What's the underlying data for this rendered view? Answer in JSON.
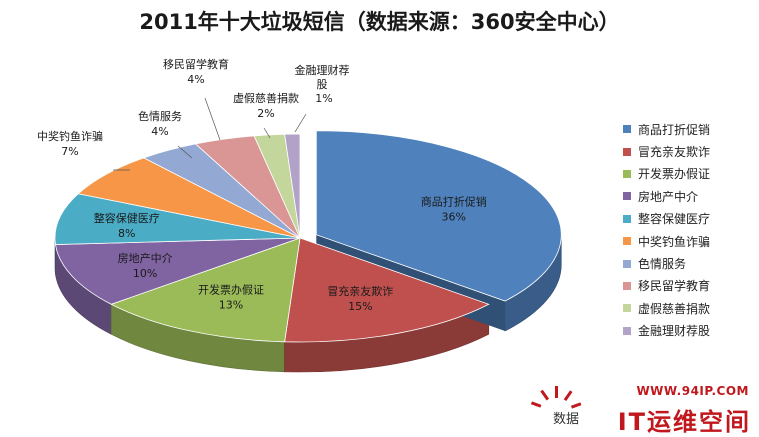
{
  "chart_data": {
    "type": "pie",
    "title": "2011年十大垃圾短信（数据来源：360安全中心）",
    "categories": [
      "商品打折促销",
      "冒充亲友欺诈",
      "开发票办假证",
      "房地产中介",
      "整容保健医疗",
      "中奖钓鱼诈骗",
      "色情服务",
      "移民留学教育",
      "虚假慈善捐款",
      "金融理财荐股"
    ],
    "values": [
      36,
      15,
      13,
      10,
      8,
      7,
      4,
      4,
      2,
      1
    ],
    "value_labels": [
      "36%",
      "15%",
      "13%",
      "10%",
      "8%",
      "7%",
      "4%",
      "4%",
      "2%",
      "1%"
    ],
    "colors": [
      "#4F81BD",
      "#C0504D",
      "#9BBB59",
      "#8064A2",
      "#4BACC6",
      "#F79646",
      "#93A9D4",
      "#D99694",
      "#C3D69B",
      "#B3A2C7"
    ],
    "legend": {
      "position": "right",
      "labels": [
        "商品打折促销",
        "冒充亲友欺诈",
        "开发票办假证",
        "房地产中介",
        "整容保健医疗",
        "中奖钓鱼诈骗",
        "色情服务",
        "移民留学教育",
        "虚假慈善捐款",
        "金融理财荐股"
      ]
    },
    "style": "3d-exploded-first"
  },
  "watermark": {
    "url": "WWW.94IP.COM",
    "brand": "IT运维空间",
    "source_fragment": "数据"
  }
}
